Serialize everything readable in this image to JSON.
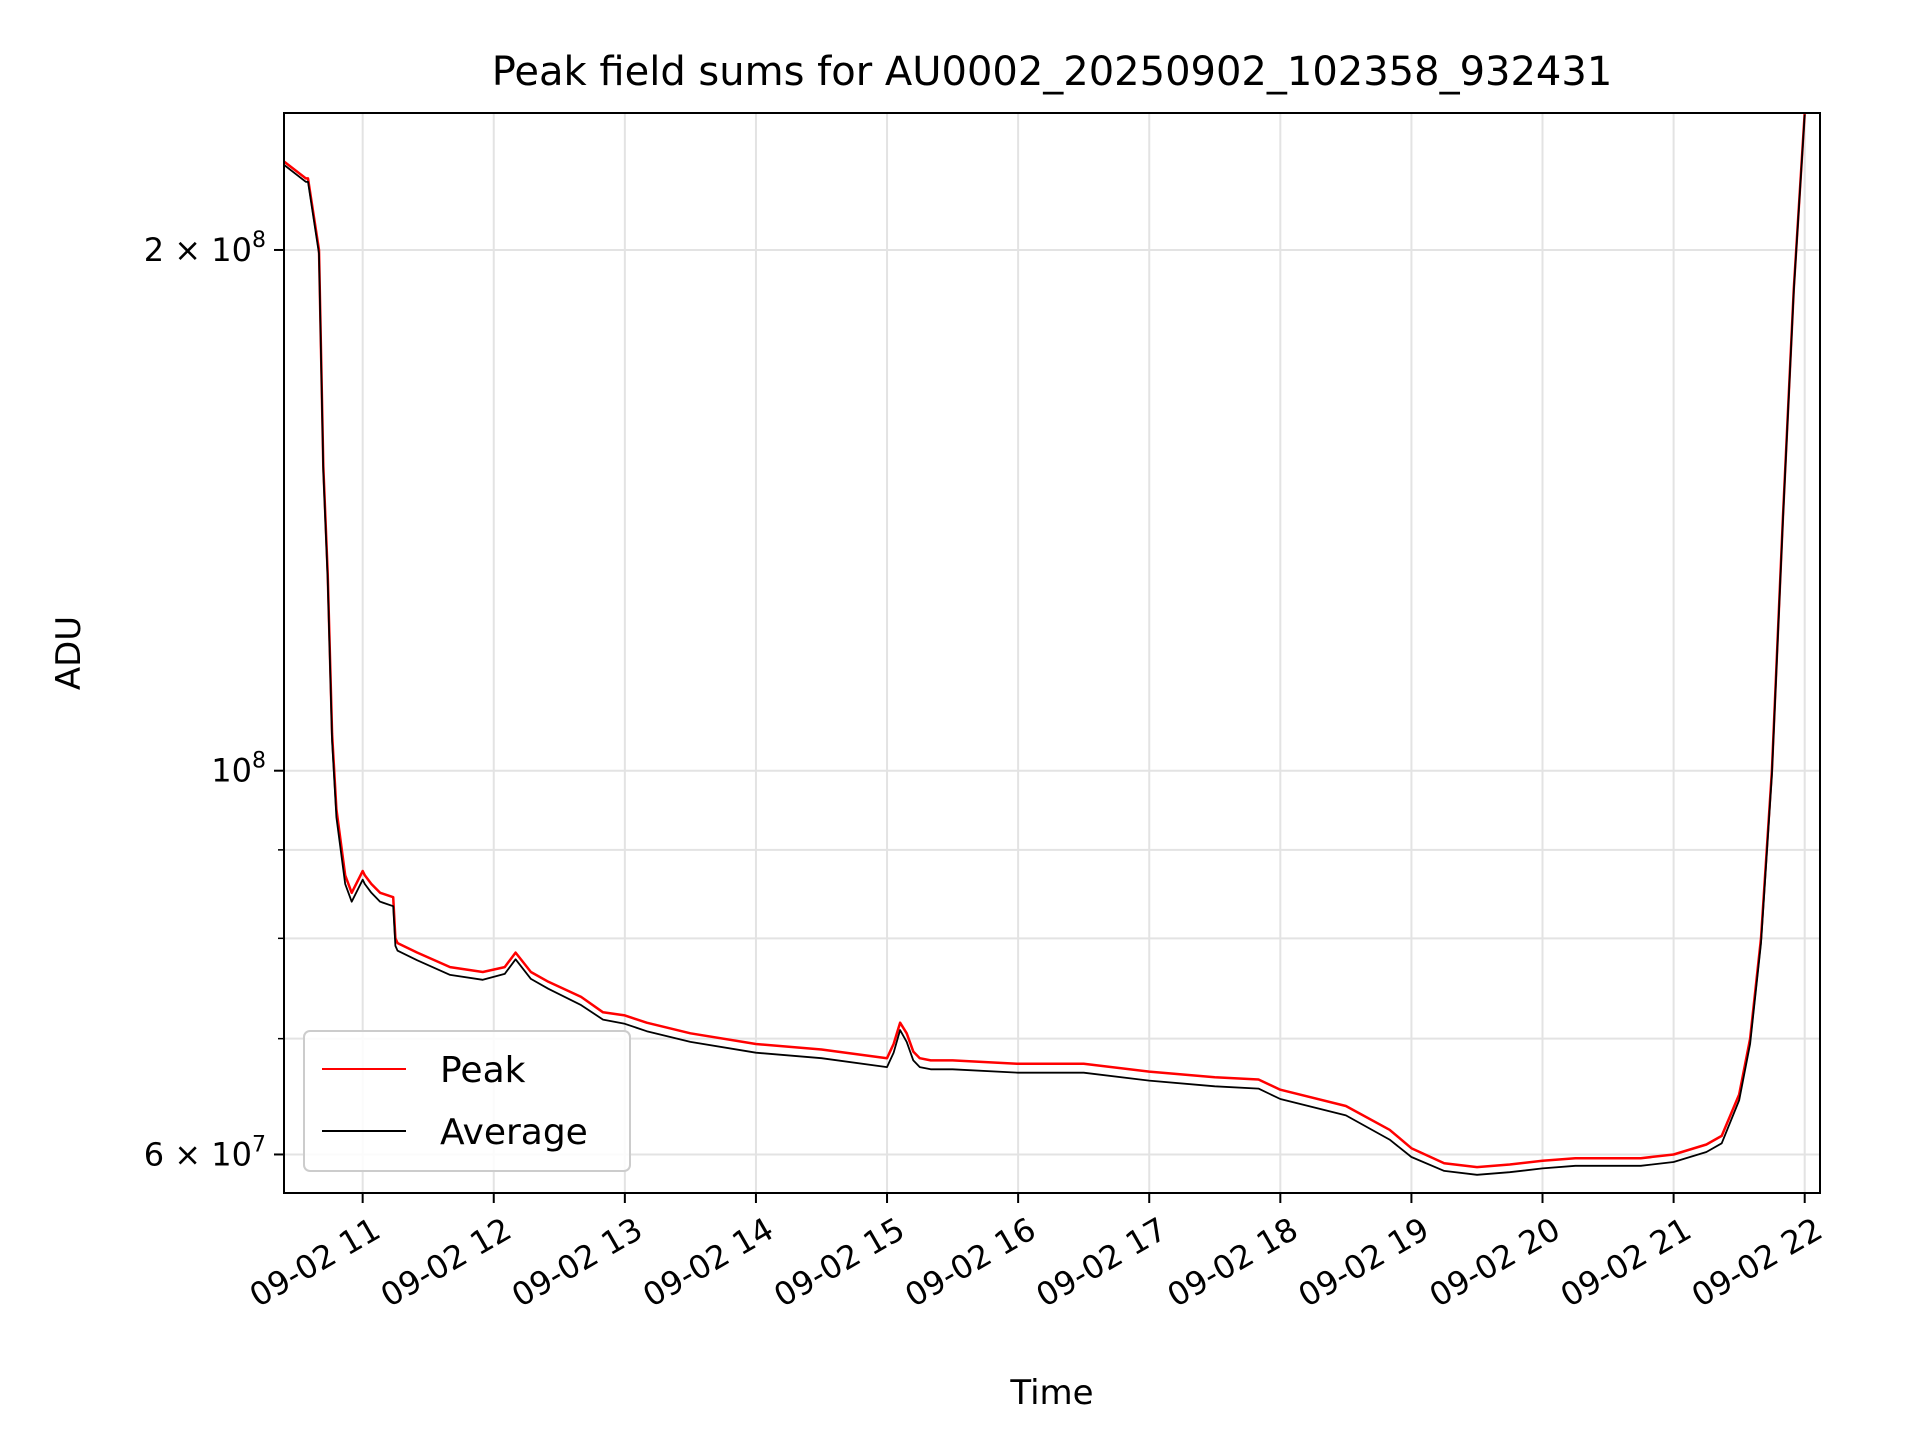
{
  "chart_data": {
    "type": "line",
    "title": "Peak field sums for AU0002_20250902_102358_932431",
    "xlabel": "Time",
    "ylabel": "ADU",
    "y_scale": "log",
    "ylim": [
      57000000,
      240000000
    ],
    "xlim": [
      "09-02 10:24",
      "09-02 22:07"
    ],
    "grid": true,
    "legend_position": "lower-left",
    "x_ticks": [
      "09-02 11",
      "09-02 12",
      "09-02 13",
      "09-02 14",
      "09-02 15",
      "09-02 16",
      "09-02 17",
      "09-02 18",
      "09-02 19",
      "09-02 20",
      "09-02 21",
      "09-02 22"
    ],
    "x_tick_rotation": 30,
    "y_ticks": [
      {
        "value": 60000000,
        "mantissa": "6",
        "exponent": "7"
      },
      {
        "value": 100000000,
        "mantissa": "",
        "exponent": "8"
      },
      {
        "value": 200000000,
        "mantissa": "2",
        "exponent": "8"
      }
    ],
    "y_minor_ticks": [
      70000000,
      80000000,
      90000000
    ],
    "series": [
      {
        "name": "Peak",
        "color": "#ff0000",
        "x": [
          "09-02 10:24",
          "09-02 10:34",
          "09-02 10:35",
          "09-02 10:40",
          "09-02 10:42",
          "09-02 10:44",
          "09-02 10:46",
          "09-02 10:48",
          "09-02 10:52",
          "09-02 10:55",
          "09-02 11:00",
          "09-02 11:01",
          "09-02 11:04",
          "09-02 11:08",
          "09-02 11:14",
          "09-02 11:15",
          "09-02 11:16",
          "09-02 11:25",
          "09-02 11:40",
          "09-02 11:55",
          "09-02 12:05",
          "09-02 12:10",
          "09-02 12:17",
          "09-02 12:25",
          "09-02 12:40",
          "09-02 12:50",
          "09-02 13:00",
          "09-02 13:10",
          "09-02 13:30",
          "09-02 14:00",
          "09-02 14:30",
          "09-02 15:00",
          "09-02 15:03",
          "09-02 15:06",
          "09-02 15:09",
          "09-02 15:12",
          "09-02 15:15",
          "09-02 15:20",
          "09-02 15:30",
          "09-02 16:00",
          "09-02 16:30",
          "09-02 17:00",
          "09-02 17:30",
          "09-02 17:50",
          "09-02 18:00",
          "09-02 18:30",
          "09-02 18:50",
          "09-02 19:00",
          "09-02 19:15",
          "09-02 19:30",
          "09-02 19:45",
          "09-02 20:00",
          "09-02 20:15",
          "09-02 20:45",
          "09-02 21:00",
          "09-02 21:15",
          "09-02 21:22",
          "09-02 21:30",
          "09-02 21:35",
          "09-02 21:40",
          "09-02 21:45",
          "09-02 21:50",
          "09-02 21:55",
          "09-02 22:00"
        ],
        "y": [
          225000000,
          220000000,
          220000000,
          200000000,
          150000000,
          130000000,
          105000000,
          95000000,
          87000000,
          85000000,
          87500000,
          87000000,
          86000000,
          85000000,
          84500000,
          80000000,
          79500000,
          78500000,
          77000000,
          76500000,
          77000000,
          78500000,
          76500000,
          75500000,
          74000000,
          72500000,
          72200000,
          71500000,
          70500000,
          69500000,
          69000000,
          68200000,
          69500000,
          71500000,
          70500000,
          68800000,
          68200000,
          68000000,
          68000000,
          67700000,
          67700000,
          67000000,
          66500000,
          66300000,
          65400000,
          64000000,
          62000000,
          60500000,
          59300000,
          59000000,
          59200000,
          59500000,
          59700000,
          59700000,
          60000000,
          60800000,
          61500000,
          65000000,
          70000000,
          80000000,
          100000000,
          140000000,
          190000000,
          240000000
        ]
      },
      {
        "name": "Average",
        "color": "#000000",
        "x": [
          "09-02 10:24",
          "09-02 10:34",
          "09-02 10:35",
          "09-02 10:40",
          "09-02 10:42",
          "09-02 10:44",
          "09-02 10:46",
          "09-02 10:48",
          "09-02 10:52",
          "09-02 10:55",
          "09-02 11:00",
          "09-02 11:01",
          "09-02 11:04",
          "09-02 11:08",
          "09-02 11:14",
          "09-02 11:15",
          "09-02 11:16",
          "09-02 11:25",
          "09-02 11:40",
          "09-02 11:55",
          "09-02 12:05",
          "09-02 12:10",
          "09-02 12:17",
          "09-02 12:25",
          "09-02 12:40",
          "09-02 12:50",
          "09-02 13:00",
          "09-02 13:10",
          "09-02 13:30",
          "09-02 14:00",
          "09-02 14:30",
          "09-02 15:00",
          "09-02 15:03",
          "09-02 15:06",
          "09-02 15:09",
          "09-02 15:12",
          "09-02 15:15",
          "09-02 15:20",
          "09-02 15:30",
          "09-02 16:00",
          "09-02 16:30",
          "09-02 17:00",
          "09-02 17:30",
          "09-02 17:50",
          "09-02 18:00",
          "09-02 18:30",
          "09-02 18:50",
          "09-02 19:00",
          "09-02 19:15",
          "09-02 19:30",
          "09-02 19:45",
          "09-02 20:00",
          "09-02 20:15",
          "09-02 20:45",
          "09-02 21:00",
          "09-02 21:15",
          "09-02 21:22",
          "09-02 21:30",
          "09-02 21:35",
          "09-02 21:40",
          "09-02 21:45",
          "09-02 21:50",
          "09-02 21:55",
          "09-02 22:00"
        ],
        "y": [
          224000000,
          219000000,
          219000000,
          199000000,
          149000000,
          129000000,
          104000000,
          94000000,
          86000000,
          84000000,
          86500000,
          86000000,
          85000000,
          84000000,
          83500000,
          79200000,
          78700000,
          77700000,
          76200000,
          75700000,
          76300000,
          77800000,
          75800000,
          74800000,
          73200000,
          71800000,
          71400000,
          70700000,
          69700000,
          68700000,
          68200000,
          67400000,
          68700000,
          70800000,
          69700000,
          68000000,
          67400000,
          67200000,
          67200000,
          66900000,
          66900000,
          66200000,
          65700000,
          65500000,
          64600000,
          63200000,
          61200000,
          59800000,
          58700000,
          58400000,
          58600000,
          58900000,
          59100000,
          59100000,
          59400000,
          60200000,
          60900000,
          64500000,
          69500000,
          79500000,
          99500000,
          139500000,
          189500000,
          239500000
        ]
      }
    ]
  }
}
